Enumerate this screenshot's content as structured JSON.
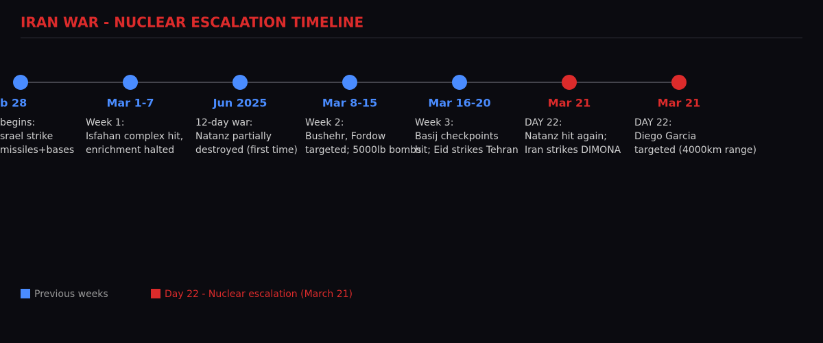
{
  "title": "IRAN WAR - NUCLEAR ESCALATION TIMELINE",
  "nodes": [
    {
      "date": "b 28",
      "color": "#4a8cff",
      "lines": [
        "begins:",
        "srael strike",
        "missiles+bases"
      ]
    },
    {
      "date": "Mar 1-7",
      "color": "#4a8cff",
      "lines": [
        "Week 1:",
        "Isfahan complex hit,",
        "enrichment halted"
      ]
    },
    {
      "date": "Jun 2025",
      "color": "#4a8cff",
      "lines": [
        "12-day war:",
        "Natanz partially",
        "destroyed (first time)"
      ]
    },
    {
      "date": "Mar 8-15",
      "color": "#4a8cff",
      "lines": [
        "Week 2:",
        "Bushehr, Fordow",
        "targeted; 5000lb bombs"
      ]
    },
    {
      "date": "Mar 16-20",
      "color": "#4a8cff",
      "lines": [
        "Week 3:",
        "Basij checkpoints",
        "hit; Eid strikes Tehran"
      ]
    },
    {
      "date": "Mar 21",
      "color": "#dc2b2b",
      "lines": [
        "DAY 22:",
        "Natanz hit again;",
        "Iran strikes DIMONA"
      ]
    },
    {
      "date": "Mar 21",
      "color": "#dc2b2b",
      "lines": [
        "DAY 22:",
        "Diego Garcia",
        "targeted (4000km range)"
      ]
    }
  ],
  "legend": [
    {
      "label": "Previous weeks",
      "color": "#4a8cff",
      "text_color": "#999999"
    },
    {
      "label": "Day 22 - Nuclear escalation (March 21)",
      "color": "#dc2b2b",
      "text_color": "#dc2b2b"
    }
  ]
}
